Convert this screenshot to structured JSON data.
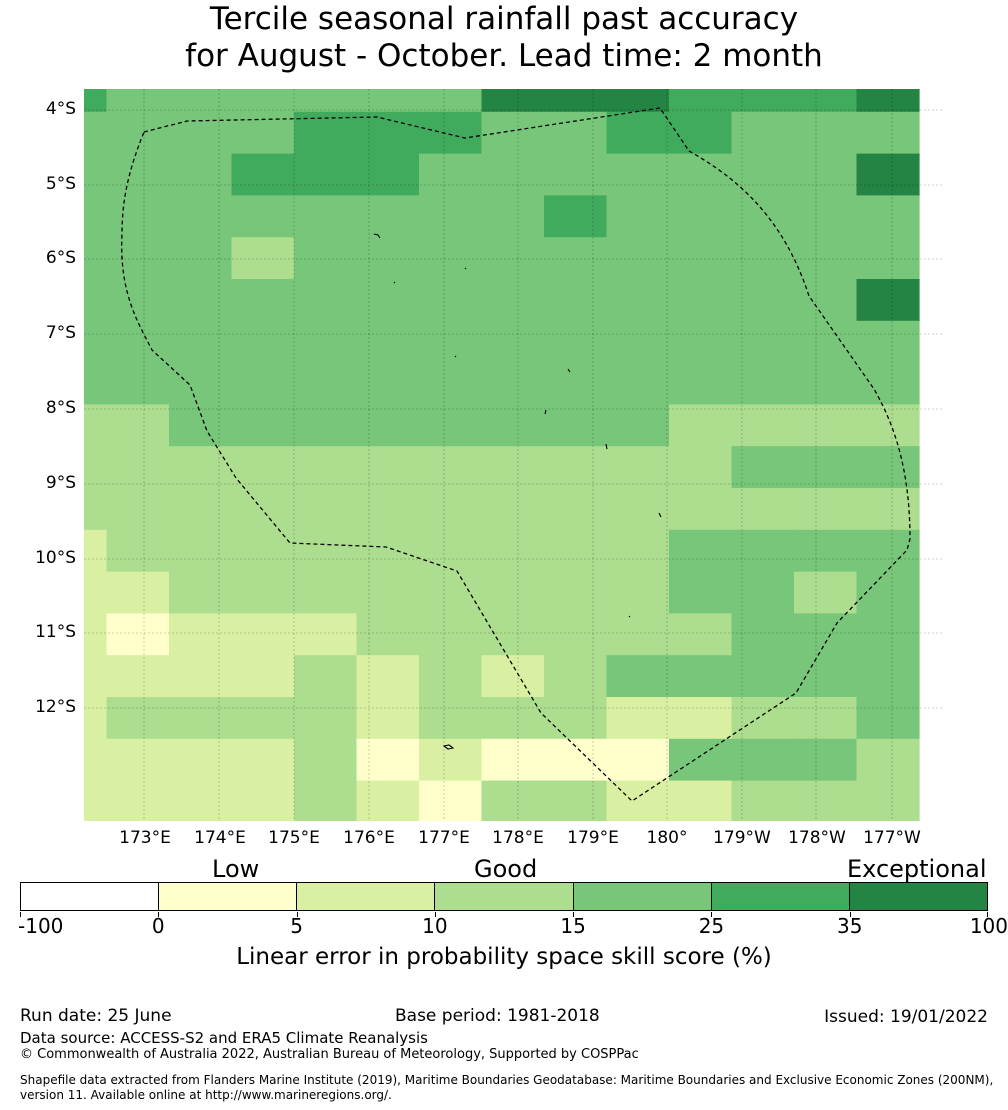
{
  "title_line1": "Tercile seasonal rainfall past accuracy",
  "title_line2": "for August - October. Lead time: 2 month",
  "map": {
    "lat_labels": [
      "4°S",
      "5°S",
      "6°S",
      "7°S",
      "8°S",
      "9°S",
      "10°S",
      "11°S",
      "12°S"
    ],
    "lon_labels": [
      "173°E",
      "174°E",
      "175°E",
      "176°E",
      "177°E",
      "178°E",
      "179°E",
      "180°",
      "179°W",
      "178°W",
      "177°W"
    ],
    "grid_rows": [
      "54444446665556",
      "44445554455444",
      "44455544444446",
      "44444444544444",
      "44434444444444",
      "44444444444446",
      "44444444444444",
      "44444444444444",
      "33444444443333",
      "33333333333444",
      "33333333333333",
      "23333333334444",
      "22333333334434",
      "21222333333444",
      "22223232344444",
      "23333233322334",
      "22223121114443",
      "22223213322333",
      "22223223333233",
      "11112221111233",
      "10011111111222",
      "10011222222222"
    ],
    "eez_boundary": "dashed black line"
  },
  "colorbar": {
    "categories": [
      "Low",
      "Good",
      "Exceptional"
    ],
    "bins": [
      "-100",
      "0",
      "5",
      "10",
      "15",
      "25",
      "35",
      "100"
    ],
    "colors": [
      "#ffffff",
      "#ffffcc",
      "#d9f0a3",
      "#addd8e",
      "#78c679",
      "#41ab5d",
      "#238443"
    ],
    "label": "Linear error in probability space skill score (%)"
  },
  "footer": {
    "run_date": "Run date: 25 June",
    "base_period": "Base period: 1981-2018",
    "issued": "Issued: 19/01/2022",
    "data_source": "Data source: ACCESS-S2 and ERA5 Climate Reanalysis",
    "copyright": "© Commonwealth of Australia 2022, Australian Bureau of Meteorology, Supported by COSPPac",
    "shapefile": "Shapefile data extracted from Flanders Marine Institute (2019), Maritime Boundaries Geodatabase: Maritime Boundaries and Exclusive Economic Zones (200NM), version 11. Available online at http://www.marineregions.org/."
  }
}
